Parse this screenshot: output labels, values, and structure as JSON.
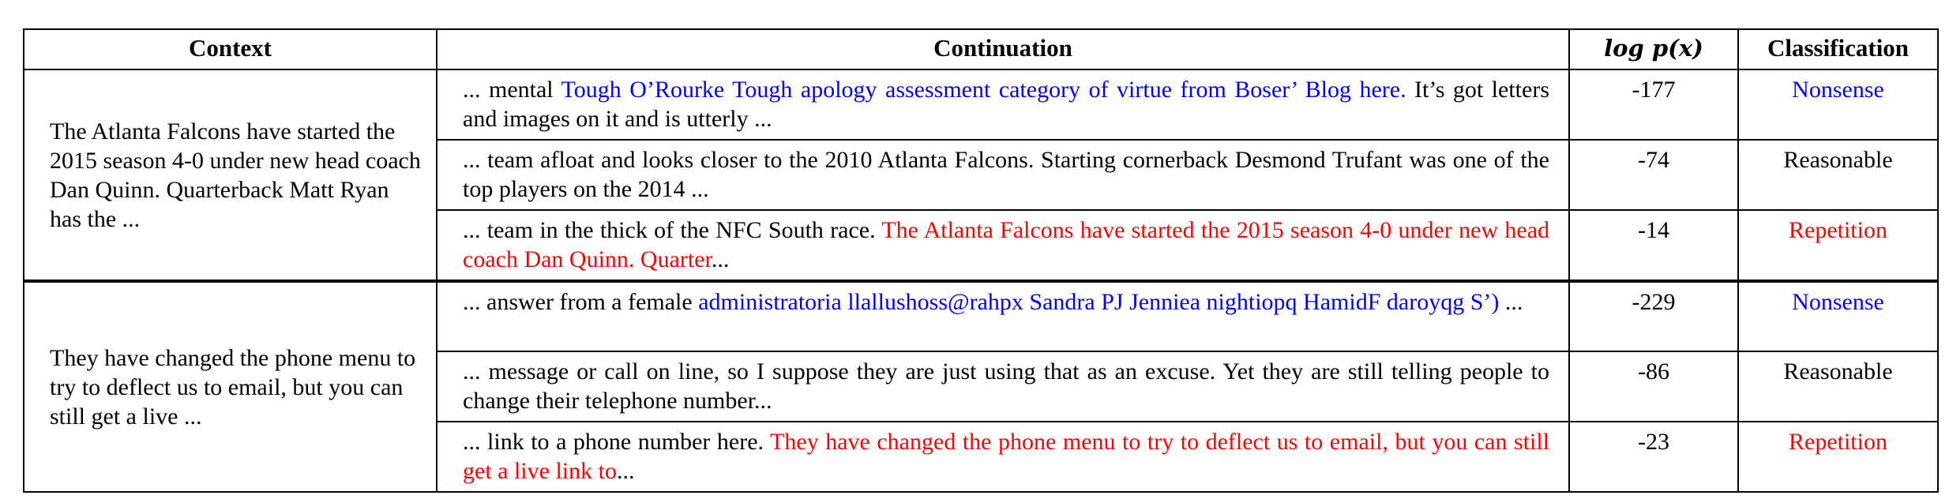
{
  "table": {
    "headers": {
      "context": "Context",
      "continuation": "Continuation",
      "logp": "log p(x)",
      "classification": "Classification"
    },
    "groups": [
      {
        "context": "The Atlanta Falcons have started the 2015 season 4-0 under new head coach Dan Quinn. Quarterback Matt Ryan has the ...",
        "rows": [
          {
            "prefix": "... mental ",
            "highlight": "Tough O’Rourke Tough apology assessment category of virtue from Boser’ Blog here.",
            "suffix": " It’s got letters and images on it and is utterly ...",
            "logp": "-177",
            "classification": "Nonsense",
            "color": "#0000ff"
          },
          {
            "prefix": "... team afloat and looks closer to the 2010 Atlanta Falcons. Starting cornerback Desmond Trufant was one of the top players on the 2014 ...",
            "highlight": "",
            "suffix": "",
            "logp": "-74",
            "classification": "Reasonable",
            "color": "#000000"
          },
          {
            "prefix": "... team in the thick of the NFC South race. ",
            "highlight": "The Atlanta Falcons have started the 2015 season 4-0 under new head coach Dan Quinn. Quarter",
            "suffix": "...",
            "logp": "-14",
            "classification": "Repetition",
            "color": "#ff0000"
          }
        ]
      },
      {
        "context": "They have changed the phone menu to try to deflect us to email, but you can still get a live ...",
        "rows": [
          {
            "prefix": "... answer from a female ",
            "highlight": "administratoria llallushoss@rahpx Sandra PJ Jenniea nightiopq HamidF daroyqg S’)",
            "suffix": " ...",
            "logp": "-229",
            "classification": "Nonsense",
            "color": "#0000ff"
          },
          {
            "prefix": "... message or call on line, so I suppose they are just using that as an excuse. Yet they are still telling people to change their telephone number...",
            "highlight": "",
            "suffix": "",
            "logp": "-86",
            "classification": "Reasonable",
            "color": "#000000"
          },
          {
            "prefix": "... link to a phone number here. ",
            "highlight": "They have changed the phone menu to try to deflect us to email, but you can still get a live link to",
            "suffix": "...",
            "logp": "-23",
            "classification": "Repetition",
            "color": "#ff0000"
          }
        ]
      }
    ]
  }
}
